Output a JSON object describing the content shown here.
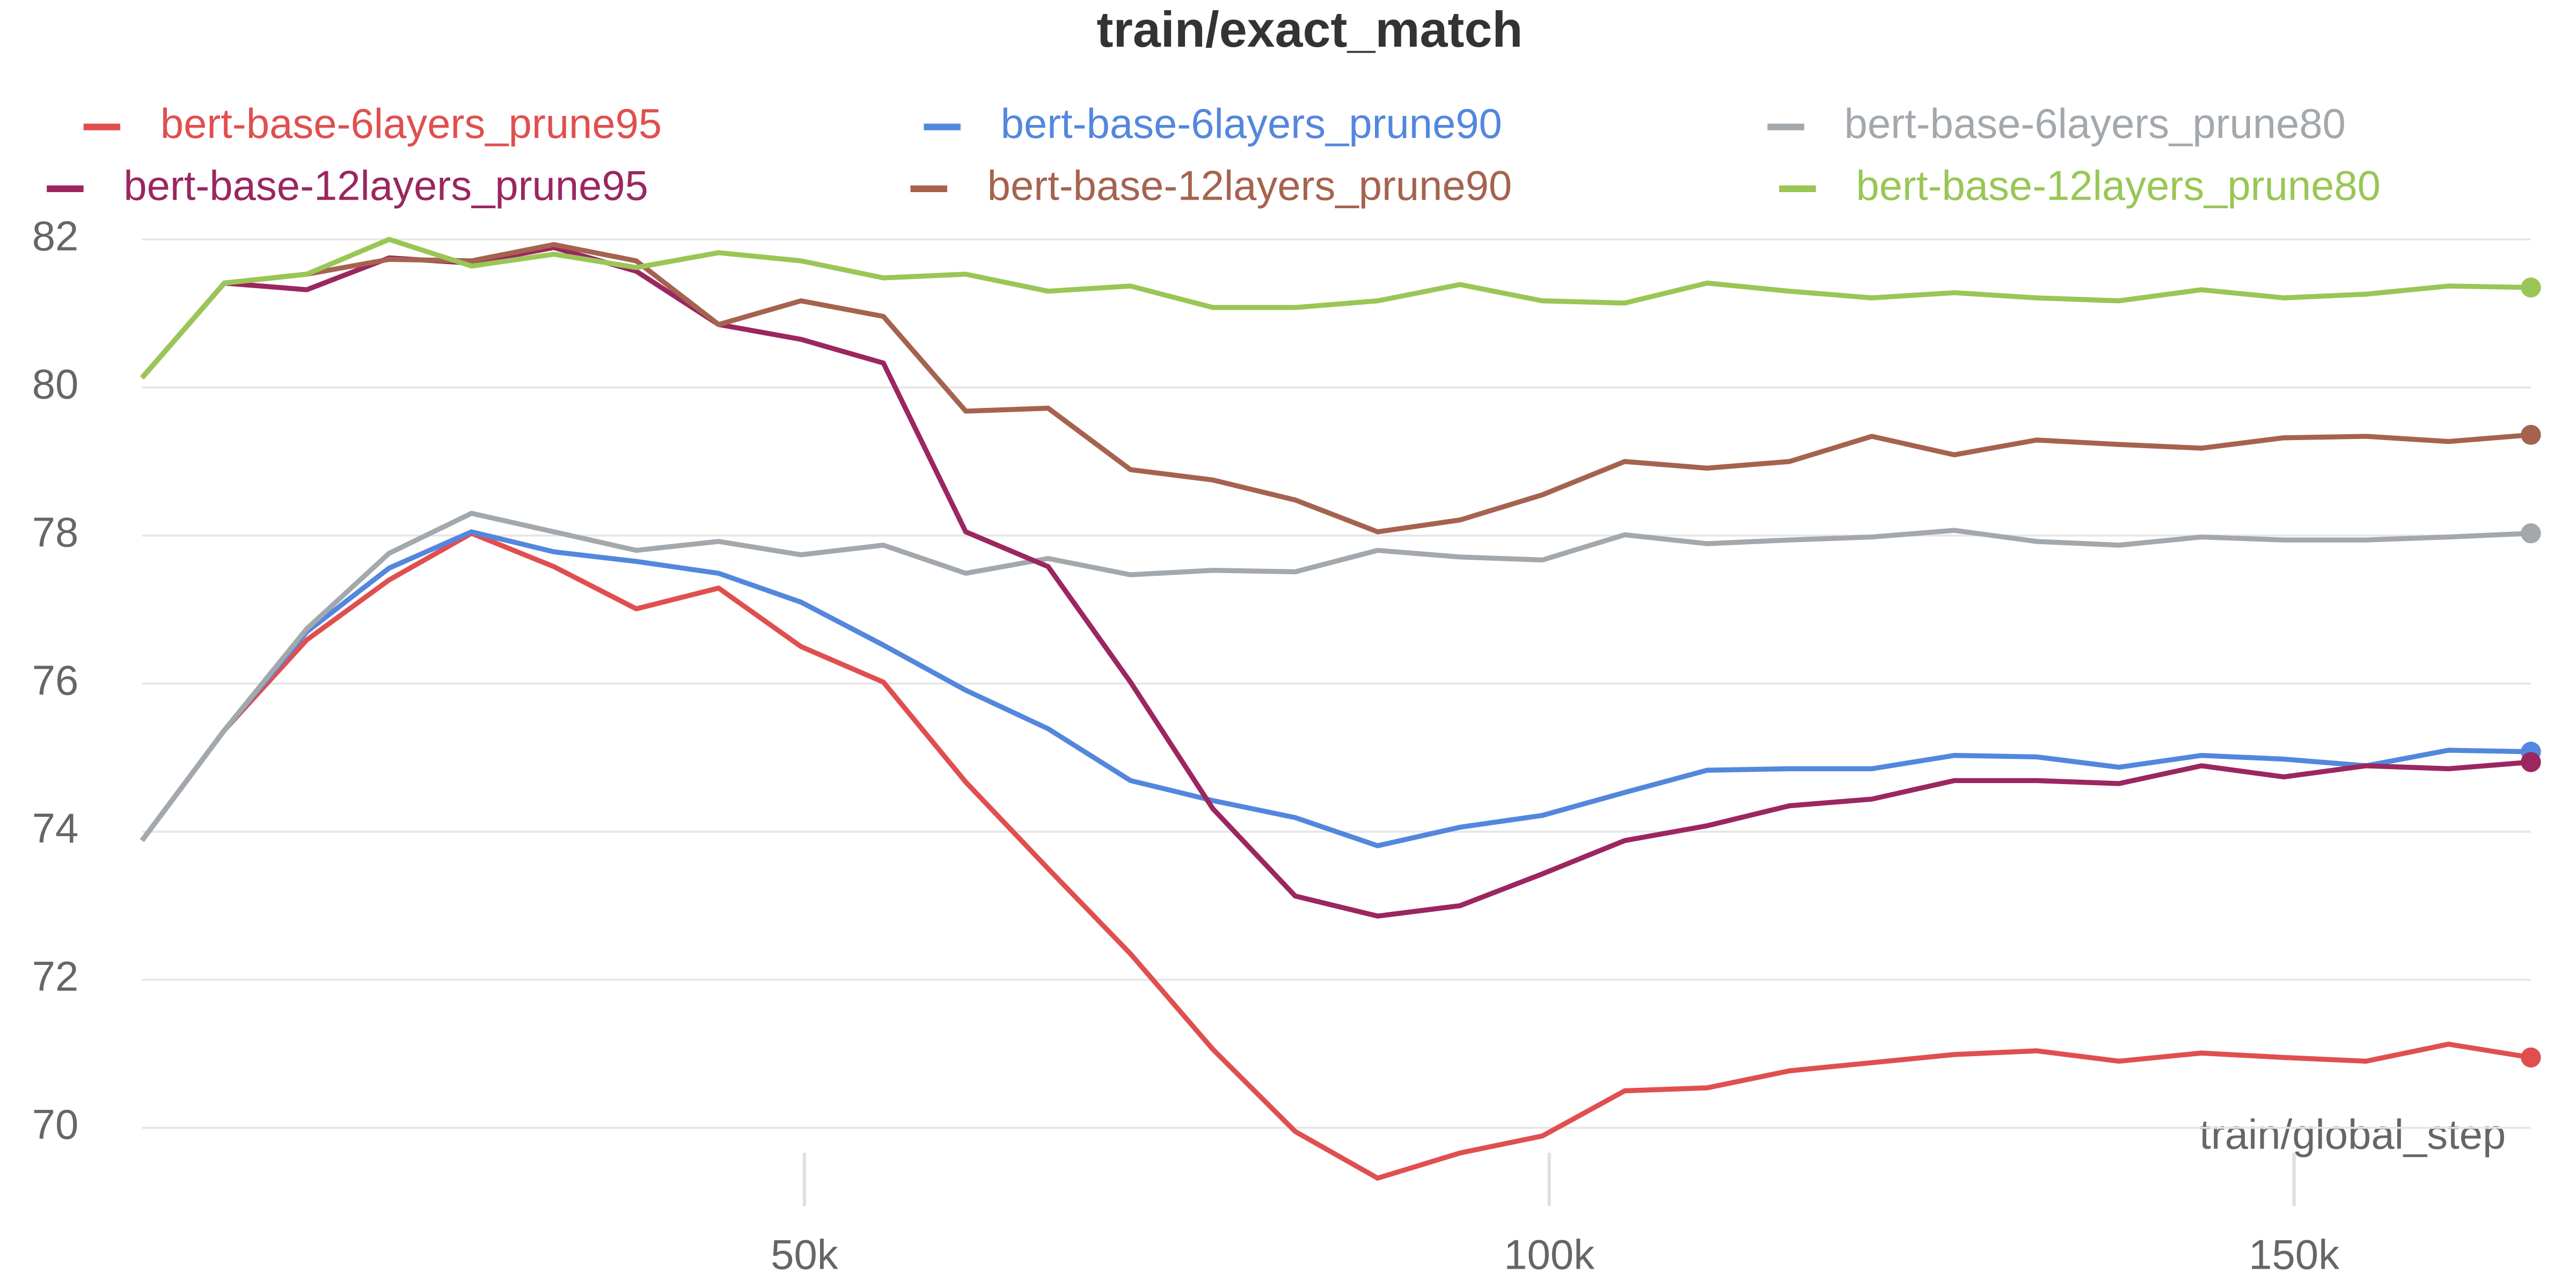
{
  "chart_data": {
    "type": "line",
    "title": "train/exact_match",
    "xlabel": "train/global_step",
    "x": [
      5530,
      11060,
      16590,
      22120,
      27650,
      33180,
      38710,
      44240,
      49770,
      55300,
      60830,
      66360,
      71890,
      77420,
      82950,
      88480,
      94010,
      99540,
      105070,
      110600,
      116130,
      121660,
      127190,
      132720,
      138250,
      143780,
      149310,
      154840,
      160370,
      165900
    ],
    "xlim": [
      5530,
      165900
    ],
    "xticks": [
      {
        "value": 50000,
        "label": "50k"
      },
      {
        "value": 100000,
        "label": "100k"
      },
      {
        "value": 150000,
        "label": "150k"
      }
    ],
    "ylim": [
      69.1,
      82.3
    ],
    "yticks": [
      70,
      72,
      74,
      76,
      78,
      80,
      82
    ],
    "grid": true,
    "series": [
      {
        "name": "bert-base-6layers_prune95",
        "color": "#e04f4f",
        "values": [
          73.88,
          75.37,
          76.59,
          77.4,
          78.03,
          77.58,
          77.01,
          77.29,
          76.5,
          76.02,
          74.67,
          73.5,
          72.35,
          71.06,
          69.95,
          69.32,
          69.66,
          69.89,
          70.5,
          70.54,
          70.77,
          70.88,
          70.99,
          71.04,
          70.9,
          71.01,
          70.95,
          70.9,
          71.13,
          70.95
        ]
      },
      {
        "name": "bert-base-6layers_prune90",
        "color": "#5387dd",
        "values": [
          73.88,
          75.37,
          76.7,
          77.56,
          78.05,
          77.78,
          77.65,
          77.49,
          77.1,
          76.52,
          75.91,
          75.39,
          74.69,
          74.42,
          74.19,
          73.81,
          74.06,
          74.22,
          74.53,
          74.83,
          74.85,
          74.85,
          75.03,
          75.01,
          74.87,
          75.03,
          74.98,
          74.89,
          75.1,
          75.08
        ]
      },
      {
        "name": "bert-base-6layers_prune80",
        "color": "#a3a8ad",
        "values": [
          73.88,
          75.37,
          76.74,
          77.76,
          78.3,
          78.05,
          77.8,
          77.92,
          77.74,
          77.87,
          77.49,
          77.69,
          77.47,
          77.53,
          77.51,
          77.8,
          77.71,
          77.67,
          78.01,
          77.89,
          77.94,
          77.98,
          78.07,
          77.92,
          77.87,
          77.98,
          77.94,
          77.94,
          77.98,
          78.03
        ]
      },
      {
        "name": "bert-base-12layers_prune95",
        "color": "#9b2660",
        "values": [
          80.13,
          81.41,
          81.32,
          81.75,
          81.68,
          81.89,
          81.57,
          80.85,
          80.65,
          80.33,
          78.05,
          77.58,
          76.02,
          74.31,
          73.13,
          72.86,
          73.0,
          73.43,
          73.88,
          74.08,
          74.35,
          74.44,
          74.69,
          74.69,
          74.65,
          74.89,
          74.74,
          74.89,
          74.85,
          74.94
        ]
      },
      {
        "name": "bert-base-12layers_prune90",
        "color": "#a5634f",
        "values": [
          80.13,
          81.41,
          81.53,
          81.73,
          81.71,
          81.93,
          81.71,
          80.85,
          81.17,
          80.96,
          79.68,
          79.72,
          78.89,
          78.75,
          78.48,
          78.05,
          78.21,
          78.55,
          79.0,
          78.91,
          79.0,
          79.34,
          79.09,
          79.29,
          79.23,
          79.18,
          79.32,
          79.34,
          79.27,
          79.36
        ]
      },
      {
        "name": "bert-base-12layers_prune80",
        "color": "#99c655",
        "values": [
          80.13,
          81.41,
          81.53,
          82.0,
          81.64,
          81.8,
          81.62,
          81.82,
          81.71,
          81.48,
          81.53,
          81.3,
          81.37,
          81.08,
          81.08,
          81.17,
          81.39,
          81.17,
          81.14,
          81.41,
          81.3,
          81.21,
          81.28,
          81.21,
          81.17,
          81.32,
          81.21,
          81.26,
          81.37,
          81.35
        ]
      }
    ]
  }
}
